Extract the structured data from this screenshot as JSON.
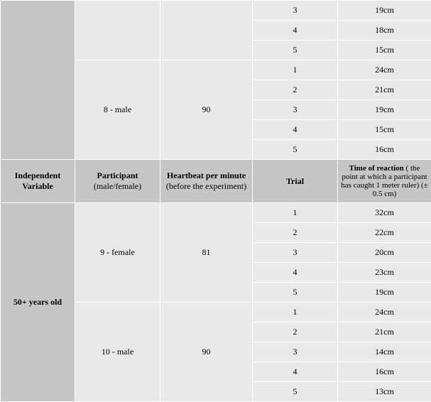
{
  "table": {
    "columns": [
      {
        "label_bold": "Independent Variable",
        "label_plain": ""
      },
      {
        "label_bold": "Participant",
        "label_plain": "(male/female)"
      },
      {
        "label_bold": "Heartbeat per minute",
        "label_plain": " (before the experiment)"
      },
      {
        "label_bold": "Trial",
        "label_plain": ""
      },
      {
        "label_bold": "Time of reaction",
        "label_plain": " ( the point at which a participant has caught 1 meter ruler) (± 0.5 cm)"
      }
    ],
    "block_a": {
      "iv": "",
      "groups": [
        {
          "participant": "",
          "heartbeat": "",
          "trials": [
            {
              "n": "3",
              "v": "19cm"
            },
            {
              "n": "4",
              "v": "18cm"
            },
            {
              "n": "5",
              "v": "15cm"
            }
          ]
        },
        {
          "participant": "8 - male",
          "heartbeat": "90",
          "trials": [
            {
              "n": "1",
              "v": "24cm"
            },
            {
              "n": "2",
              "v": "21cm"
            },
            {
              "n": "3",
              "v": "19cm"
            },
            {
              "n": "4",
              "v": "15cm"
            },
            {
              "n": "5",
              "v": "16cm"
            }
          ]
        }
      ]
    },
    "block_b": {
      "iv": "50+ years old",
      "groups": [
        {
          "participant": "9 - female",
          "heartbeat": "81",
          "trials": [
            {
              "n": "1",
              "v": "32cm"
            },
            {
              "n": "2",
              "v": "22cm"
            },
            {
              "n": "3",
              "v": "20cm"
            },
            {
              "n": "4",
              "v": "23cm"
            },
            {
              "n": "5",
              "v": "19cm"
            }
          ]
        },
        {
          "participant": "10 - male",
          "heartbeat": "90",
          "trials": [
            {
              "n": "1",
              "v": "24cm"
            },
            {
              "n": "2",
              "v": "21cm"
            },
            {
              "n": "3",
              "v": "14cm"
            },
            {
              "n": "4",
              "v": "16cm"
            },
            {
              "n": "5",
              "v": "13cm"
            }
          ]
        }
      ]
    }
  }
}
